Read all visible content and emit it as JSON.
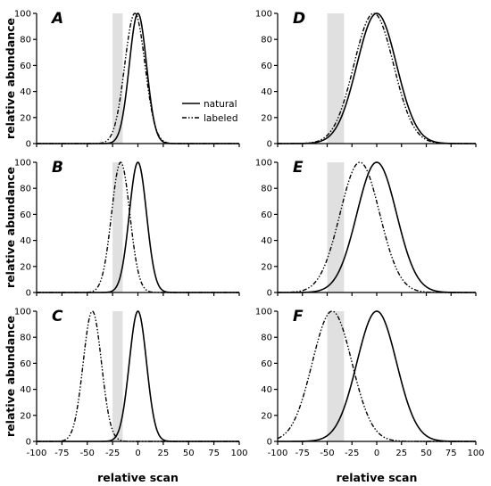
{
  "chart_data": {
    "type": "line",
    "legend": {
      "placement": "right of panel A",
      "entries": [
        "natural",
        "labeled"
      ]
    },
    "x_axis_label": "relative scan",
    "y_axis_label": "relative abundance",
    "xlim": [
      -100,
      100
    ],
    "ylim": [
      0,
      100
    ],
    "x_ticks": [
      -100,
      -75,
      -50,
      -25,
      0,
      25,
      50,
      75,
      100
    ],
    "y_ticks": [
      0,
      20,
      40,
      60,
      80,
      100
    ],
    "panels": [
      {
        "letter": "A",
        "shade_range": [
          -25,
          -15
        ],
        "series": [
          {
            "name": "natural",
            "center": 0,
            "width": 8.5
          },
          {
            "name": "labeled",
            "center": -3,
            "width": 10
          }
        ]
      },
      {
        "letter": "B",
        "shade_range": [
          -25,
          -15
        ],
        "series": [
          {
            "name": "natural",
            "center": 0,
            "width": 8.5
          },
          {
            "name": "labeled",
            "center": -17,
            "width": 9
          }
        ]
      },
      {
        "letter": "C",
        "shade_range": [
          -25,
          -15
        ],
        "series": [
          {
            "name": "natural",
            "center": 0,
            "width": 8.5
          },
          {
            "name": "labeled",
            "center": -45,
            "width": 9
          }
        ]
      },
      {
        "letter": "D",
        "shade_range": [
          -50,
          -33
        ],
        "series": [
          {
            "name": "natural",
            "center": 0,
            "width": 20
          },
          {
            "name": "labeled",
            "center": -3,
            "width": 20
          }
        ]
      },
      {
        "letter": "E",
        "shade_range": [
          -50,
          -33
        ],
        "series": [
          {
            "name": "natural",
            "center": 0,
            "width": 20
          },
          {
            "name": "labeled",
            "center": -17,
            "width": 20
          }
        ]
      },
      {
        "letter": "F",
        "shade_range": [
          -50,
          -33
        ],
        "series": [
          {
            "name": "natural",
            "center": 0,
            "width": 20
          },
          {
            "name": "labeled",
            "center": -45,
            "width": 20
          }
        ]
      }
    ]
  }
}
